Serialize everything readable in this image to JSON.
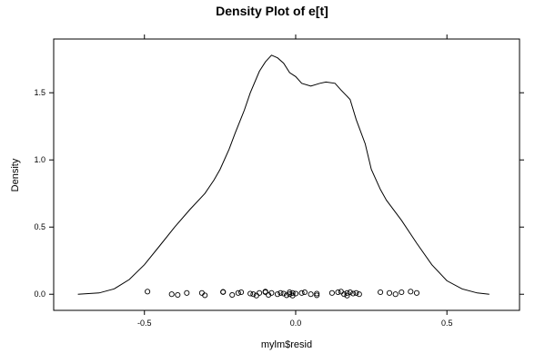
{
  "chart_data": {
    "type": "line",
    "title": "Density Plot of e[t]",
    "xlabel": "mylm$resid",
    "ylabel": "Density",
    "xlim": [
      -0.8,
      0.74
    ],
    "ylim": [
      -0.12,
      1.9
    ],
    "x_ticks": [
      -0.5,
      0.0,
      0.5
    ],
    "x_tick_labels": [
      "-0.5",
      "0.0",
      "0.5"
    ],
    "y_ticks": [
      0.0,
      0.5,
      1.0,
      1.5
    ],
    "y_tick_labels": [
      "0.0",
      "0.5",
      "1.0",
      "1.5"
    ],
    "grid": false,
    "series": [
      {
        "values_x": [
          -0.72,
          -0.65,
          -0.6,
          -0.55,
          -0.5,
          -0.45,
          -0.4,
          -0.35,
          -0.3,
          -0.27,
          -0.25,
          -0.22,
          -0.2,
          -0.17,
          -0.15,
          -0.12,
          -0.1,
          -0.08,
          -0.06,
          -0.04,
          -0.02,
          0.0,
          0.02,
          0.05,
          0.08,
          0.1,
          0.13,
          0.15,
          0.18,
          0.2,
          0.23,
          0.25,
          0.28,
          0.3,
          0.35,
          0.4,
          0.45,
          0.5,
          0.55,
          0.6,
          0.64
        ],
        "values_y": [
          0.0,
          0.01,
          0.04,
          0.11,
          0.22,
          0.36,
          0.5,
          0.63,
          0.75,
          0.85,
          0.93,
          1.08,
          1.2,
          1.37,
          1.5,
          1.66,
          1.73,
          1.78,
          1.76,
          1.72,
          1.65,
          1.62,
          1.57,
          1.55,
          1.57,
          1.58,
          1.57,
          1.52,
          1.45,
          1.3,
          1.12,
          0.93,
          0.78,
          0.7,
          0.55,
          0.38,
          0.22,
          0.1,
          0.04,
          0.01,
          0.0
        ]
      }
    ],
    "rug": {
      "x": [
        -0.49,
        -0.41,
        -0.39,
        -0.36,
        -0.31,
        -0.3,
        -0.24,
        -0.24,
        -0.21,
        -0.19,
        -0.18,
        -0.15,
        -0.14,
        -0.13,
        -0.12,
        -0.1,
        -0.1,
        -0.09,
        -0.08,
        -0.06,
        -0.05,
        -0.04,
        -0.03,
        -0.02,
        -0.02,
        -0.01,
        -0.01,
        0.0,
        0.02,
        0.03,
        0.05,
        0.07,
        0.07,
        0.12,
        0.14,
        0.15,
        0.16,
        0.17,
        0.17,
        0.18,
        0.19,
        0.2,
        0.21,
        0.28,
        0.31,
        0.33,
        0.35,
        0.38,
        0.4
      ],
      "y": [
        0.02,
        0.0,
        -0.005,
        0.01,
        0.01,
        -0.008,
        0.018,
        0.016,
        -0.005,
        0.01,
        0.015,
        0.005,
        0.0,
        -0.01,
        0.01,
        0.02,
        0.015,
        -0.005,
        0.01,
        0.0,
        0.01,
        0.005,
        -0.008,
        0.015,
        0.0,
        0.01,
        -0.01,
        0.005,
        0.01,
        0.015,
        0.0,
        -0.008,
        0.005,
        0.01,
        0.015,
        0.02,
        0.0,
        0.01,
        -0.01,
        0.015,
        0.005,
        0.01,
        0.0,
        0.015,
        0.01,
        0.0,
        0.015,
        0.02,
        0.01
      ]
    }
  }
}
